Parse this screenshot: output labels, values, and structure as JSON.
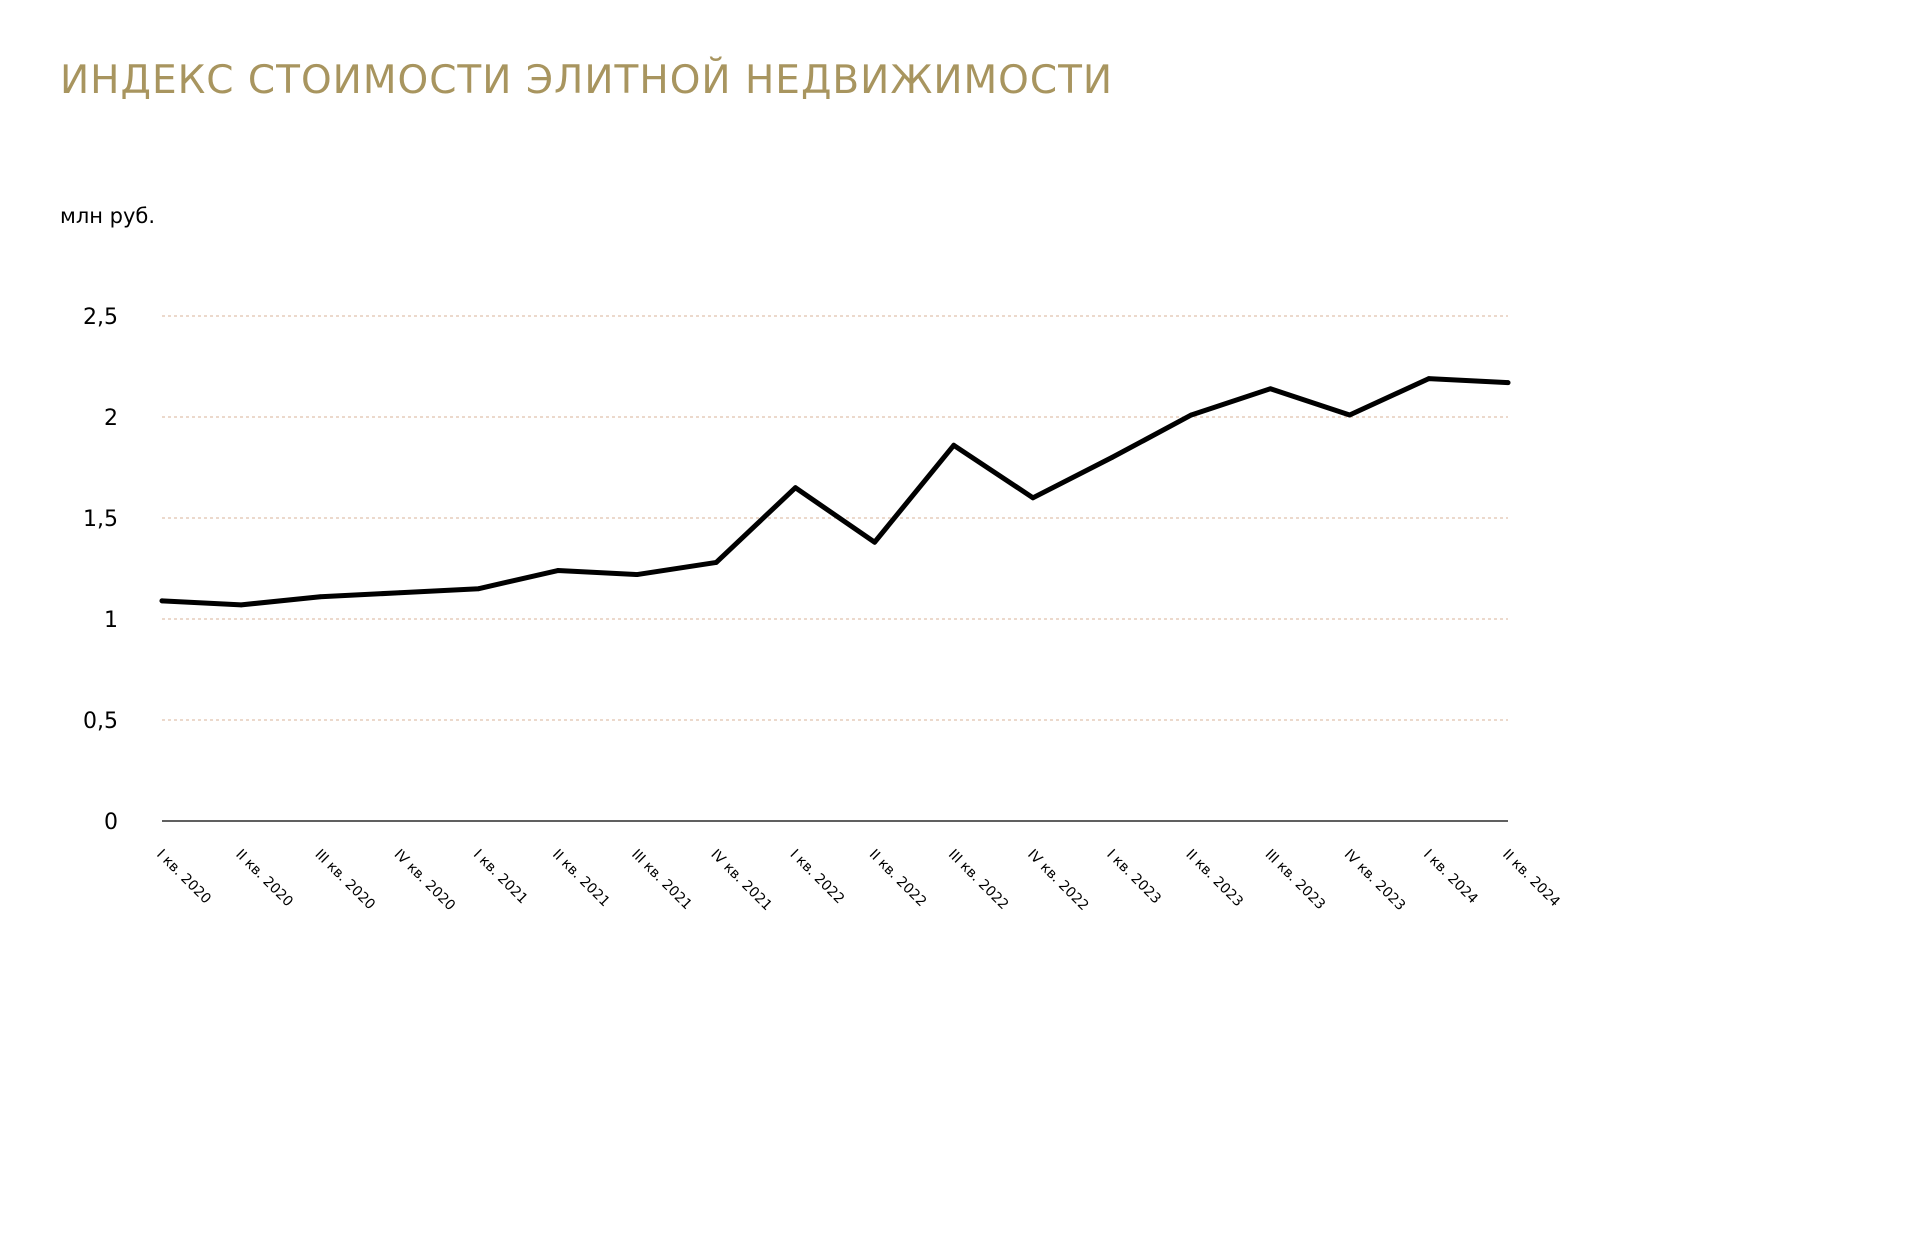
{
  "title": "ИНДЕКС СТОИМОСТИ ЭЛИТНОЙ НЕДВИЖИМОСТИ",
  "unit": "млн руб.",
  "colors": {
    "title": "#a8955f",
    "line": "#000000",
    "grid": "#e0c2ad",
    "axis": "#000000"
  },
  "chart_data": {
    "type": "line",
    "title": "ИНДЕКС СТОИМОСТИ ЭЛИТНОЙ НЕДВИЖИМОСТИ",
    "ylabel": "млн руб.",
    "xlabel": "",
    "ylim": [
      0,
      2.5
    ],
    "yticks": [
      0,
      0.5,
      1,
      1.5,
      2,
      2.5
    ],
    "ytick_labels": [
      "0",
      "0,5",
      "1",
      "1,5",
      "2",
      "2,5"
    ],
    "grid": "horizontal, dashed",
    "legend": "none",
    "categories": [
      "I кв. 2020",
      "II кв. 2020",
      "III кв. 2020",
      "IV кв. 2020",
      "I кв. 2021",
      "II кв. 2021",
      "III кв. 2021",
      "IV кв. 2021",
      "I кв. 2022",
      "II кв. 2022",
      "III кв. 2022",
      "IV кв. 2022",
      "I кв. 2023",
      "II кв. 2023",
      "III кв. 2023",
      "IV кв. 2023",
      "I кв. 2024",
      "II кв. 2024"
    ],
    "series": [
      {
        "values": [
          1.09,
          1.07,
          1.11,
          1.13,
          1.15,
          1.24,
          1.22,
          1.28,
          1.65,
          1.38,
          1.86,
          1.6,
          1.8,
          2.01,
          2.14,
          2.01,
          2.19,
          2.17
        ]
      }
    ]
  }
}
